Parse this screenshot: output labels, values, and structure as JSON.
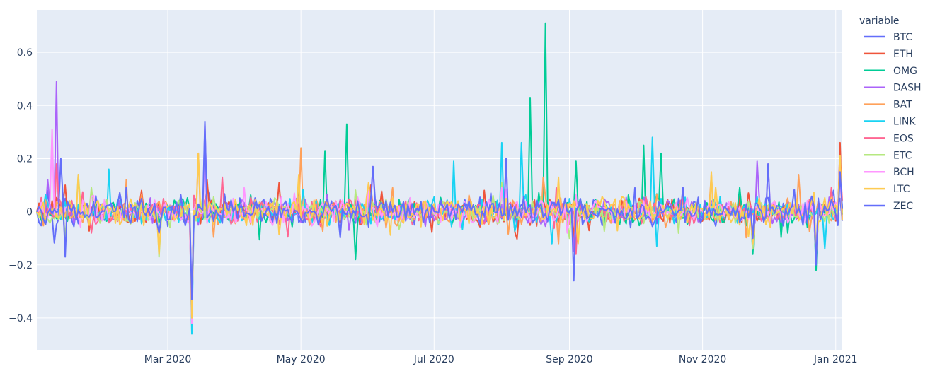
{
  "chart_data": {
    "type": "line",
    "title": "",
    "xlabel": "",
    "ylabel": "",
    "legend": {
      "title": "variable",
      "placement": "right"
    },
    "x_range": [
      "2020-01-01",
      "2021-01-04"
    ],
    "x_ticks": [
      {
        "date": "2020-03-01",
        "label": "Mar 2020"
      },
      {
        "date": "2020-05-01",
        "label": "May 2020"
      },
      {
        "date": "2020-07-01",
        "label": "Jul 2020"
      },
      {
        "date": "2020-09-01",
        "label": "Sep 2020"
      },
      {
        "date": "2020-11-01",
        "label": "Nov 2020"
      },
      {
        "date": "2021-01-01",
        "label": "Jan 2021"
      }
    ],
    "ylim": [
      -0.52,
      0.76
    ],
    "y_ticks": [
      -0.4,
      -0.2,
      0,
      0.2,
      0.4,
      0.6
    ],
    "y_tick_labels": [
      "−0.4",
      "−0.2",
      "0",
      "0.2",
      "0.4",
      "0.6"
    ],
    "grid": true,
    "background": "#e5ecf6",
    "series": [
      {
        "name": "BTC",
        "color": "#636efa",
        "points": [
          [
            "2020-01-01",
            0.0
          ],
          [
            "2020-01-06",
            0.08
          ],
          [
            "2020-01-14",
            0.05
          ],
          [
            "2020-02-04",
            0.03
          ],
          [
            "2020-03-12",
            -0.38
          ],
          [
            "2020-03-19",
            0.09
          ],
          [
            "2020-04-29",
            0.05
          ],
          [
            "2020-06-02",
            0.08
          ],
          [
            "2020-07-27",
            0.07
          ],
          [
            "2020-09-03",
            -0.1
          ],
          [
            "2020-10-21",
            0.05
          ],
          [
            "2020-11-24",
            -0.09
          ],
          [
            "2020-12-31",
            0.08
          ],
          [
            "2021-01-03",
            0.05
          ]
        ]
      },
      {
        "name": "ETH",
        "color": "#ef553b",
        "points": [
          [
            "2020-01-01",
            0.0
          ],
          [
            "2020-01-14",
            0.1
          ],
          [
            "2020-02-18",
            0.08
          ],
          [
            "2020-03-12",
            -0.42
          ],
          [
            "2020-03-19",
            0.12
          ],
          [
            "2020-04-30",
            0.1
          ],
          [
            "2020-06-02",
            0.1
          ],
          [
            "2020-07-24",
            0.08
          ],
          [
            "2020-08-18",
            0.05
          ],
          [
            "2020-09-03",
            -0.1
          ],
          [
            "2020-11-24",
            -0.13
          ],
          [
            "2020-12-23",
            -0.18
          ],
          [
            "2021-01-03",
            0.26
          ]
        ]
      },
      {
        "name": "OMG",
        "color": "#00cc96",
        "points": [
          [
            "2020-01-01",
            0.0
          ],
          [
            "2020-03-12",
            -0.4
          ],
          [
            "2020-05-12",
            0.23
          ],
          [
            "2020-05-22",
            0.33
          ],
          [
            "2020-05-26",
            -0.18
          ],
          [
            "2020-08-14",
            0.43
          ],
          [
            "2020-08-21",
            0.71
          ],
          [
            "2020-09-04",
            0.19
          ],
          [
            "2020-10-05",
            0.25
          ],
          [
            "2020-10-13",
            0.22
          ],
          [
            "2020-11-24",
            -0.16
          ],
          [
            "2020-12-23",
            -0.22
          ],
          [
            "2021-01-03",
            0.2
          ]
        ]
      },
      {
        "name": "DASH",
        "color": "#ab63fa",
        "points": [
          [
            "2020-01-01",
            0.0
          ],
          [
            "2020-01-06",
            0.12
          ],
          [
            "2020-01-10",
            0.49
          ],
          [
            "2020-01-14",
            -0.12
          ],
          [
            "2020-03-12",
            -0.36
          ],
          [
            "2020-03-18",
            0.33
          ],
          [
            "2020-06-03",
            0.17
          ],
          [
            "2020-08-03",
            0.2
          ],
          [
            "2020-09-03",
            -0.15
          ],
          [
            "2020-11-26",
            0.19
          ],
          [
            "2020-12-01",
            0.18
          ],
          [
            "2020-12-23",
            -0.18
          ],
          [
            "2021-01-03",
            0.18
          ]
        ]
      },
      {
        "name": "BAT",
        "color": "#ffa15a",
        "points": [
          [
            "2020-01-01",
            0.0
          ],
          [
            "2020-02-11",
            0.12
          ],
          [
            "2020-03-12",
            -0.38
          ],
          [
            "2020-03-15",
            0.22
          ],
          [
            "2020-05-01",
            0.24
          ],
          [
            "2020-06-12",
            0.09
          ],
          [
            "2020-08-20",
            0.13
          ],
          [
            "2020-08-27",
            -0.12
          ],
          [
            "2020-11-05",
            0.14
          ],
          [
            "2020-12-15",
            0.14
          ],
          [
            "2021-01-03",
            0.21
          ]
        ]
      },
      {
        "name": "LINK",
        "color": "#19d3f3",
        "points": [
          [
            "2020-01-01",
            0.0
          ],
          [
            "2020-02-03",
            0.16
          ],
          [
            "2020-03-12",
            -0.46
          ],
          [
            "2020-07-10",
            0.19
          ],
          [
            "2020-08-01",
            0.26
          ],
          [
            "2020-08-10",
            0.26
          ],
          [
            "2020-08-24",
            -0.12
          ],
          [
            "2020-10-09",
            0.28
          ],
          [
            "2020-10-11",
            -0.13
          ],
          [
            "2020-12-27",
            -0.14
          ],
          [
            "2021-01-03",
            0.16
          ]
        ]
      },
      {
        "name": "EOS",
        "color": "#ff6692",
        "points": [
          [
            "2020-01-01",
            0.0
          ],
          [
            "2020-01-10",
            0.18
          ],
          [
            "2020-03-12",
            -0.4
          ],
          [
            "2020-03-26",
            0.13
          ],
          [
            "2020-06-01",
            0.07
          ],
          [
            "2020-08-26",
            0.09
          ],
          [
            "2020-09-04",
            -0.16
          ],
          [
            "2020-11-24",
            -0.14
          ],
          [
            "2020-12-23",
            -0.17
          ],
          [
            "2021-01-03",
            0.18
          ]
        ]
      },
      {
        "name": "ETC",
        "color": "#b6e880",
        "points": [
          [
            "2020-01-01",
            0.0
          ],
          [
            "2020-01-20",
            0.14
          ],
          [
            "2020-02-26",
            -0.17
          ],
          [
            "2020-03-12",
            -0.4
          ],
          [
            "2020-04-30",
            0.12
          ],
          [
            "2020-06-01",
            0.08
          ],
          [
            "2020-08-01",
            0.11
          ],
          [
            "2020-09-01",
            -0.1
          ],
          [
            "2020-11-24",
            -0.14
          ],
          [
            "2020-12-23",
            -0.19
          ],
          [
            "2021-01-03",
            0.17
          ]
        ]
      },
      {
        "name": "BCH",
        "color": "#ff97ff",
        "points": [
          [
            "2020-01-01",
            0.0
          ],
          [
            "2020-01-08",
            0.31
          ],
          [
            "2020-03-12",
            -0.42
          ],
          [
            "2020-03-18",
            0.26
          ],
          [
            "2020-04-05",
            0.09
          ],
          [
            "2020-06-01",
            0.08
          ],
          [
            "2020-08-01",
            0.09
          ],
          [
            "2020-08-31",
            -0.08
          ],
          [
            "2020-11-24",
            -0.12
          ],
          [
            "2020-12-23",
            -0.17
          ],
          [
            "2021-01-03",
            0.14
          ]
        ]
      },
      {
        "name": "LTC",
        "color": "#fecb52",
        "points": [
          [
            "2020-01-01",
            0.0
          ],
          [
            "2020-01-20",
            0.14
          ],
          [
            "2020-02-26",
            -0.16
          ],
          [
            "2020-03-12",
            -0.4
          ],
          [
            "2020-03-15",
            0.22
          ],
          [
            "2020-04-30",
            0.14
          ],
          [
            "2020-06-01",
            0.11
          ],
          [
            "2020-08-27",
            0.13
          ],
          [
            "2020-09-05",
            -0.12
          ],
          [
            "2020-11-05",
            0.15
          ],
          [
            "2020-11-24",
            -0.12
          ],
          [
            "2020-12-23",
            -0.17
          ],
          [
            "2021-01-03",
            0.21
          ]
        ]
      },
      {
        "name": "ZEC",
        "color": "#636efa",
        "points": [
          [
            "2020-01-01",
            0.0
          ],
          [
            "2020-01-12",
            0.2
          ],
          [
            "2020-01-14",
            -0.17
          ],
          [
            "2020-02-26",
            -0.08
          ],
          [
            "2020-03-12",
            -0.33
          ],
          [
            "2020-03-18",
            0.34
          ],
          [
            "2020-06-03",
            0.17
          ],
          [
            "2020-08-03",
            0.2
          ],
          [
            "2020-09-03",
            -0.26
          ],
          [
            "2020-10-01",
            0.09
          ],
          [
            "2020-11-24",
            -0.1
          ],
          [
            "2020-12-01",
            0.18
          ],
          [
            "2020-12-23",
            -0.2
          ],
          [
            "2021-01-03",
            0.15
          ]
        ]
      }
    ]
  }
}
